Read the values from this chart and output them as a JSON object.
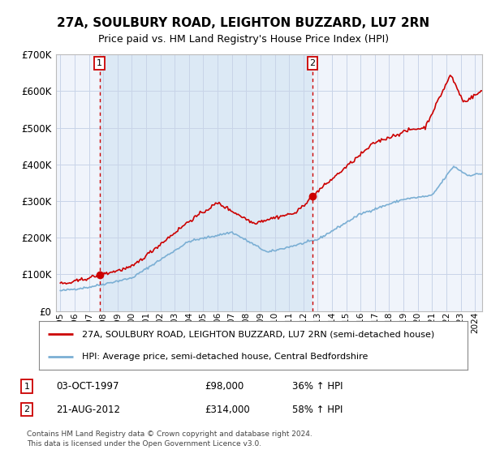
{
  "title": "27A, SOULBURY ROAD, LEIGHTON BUZZARD, LU7 2RN",
  "subtitle": "Price paid vs. HM Land Registry's House Price Index (HPI)",
  "plot_bg_color": "#f0f4fb",
  "highlight_bg_color": "#dce9f5",
  "grid_color": "#c8d4e8",
  "hpi_color": "#7bafd4",
  "price_color": "#cc0000",
  "marker_color": "#cc0000",
  "dashed_color": "#cc0000",
  "ylim": [
    0,
    700000
  ],
  "yticks": [
    0,
    100000,
    200000,
    300000,
    400000,
    500000,
    600000,
    700000
  ],
  "ytick_labels": [
    "£0",
    "£100K",
    "£200K",
    "£300K",
    "£400K",
    "£500K",
    "£600K",
    "£700K"
  ],
  "x_start": 1995,
  "x_end": 2024,
  "xticks": [
    1995,
    1996,
    1997,
    1998,
    1999,
    2000,
    2001,
    2002,
    2003,
    2004,
    2005,
    2006,
    2007,
    2008,
    2009,
    2010,
    2011,
    2012,
    2013,
    2014,
    2015,
    2016,
    2017,
    2018,
    2019,
    2020,
    2021,
    2022,
    2023,
    2024
  ],
  "sale1_x": 1997.75,
  "sale1_y": 98000,
  "sale1_label": "1",
  "sale1_date": "03-OCT-1997",
  "sale1_price": "£98,000",
  "sale1_hpi": "36% ↑ HPI",
  "sale2_x": 2012.63,
  "sale2_y": 314000,
  "sale2_label": "2",
  "sale2_date": "21-AUG-2012",
  "sale2_price": "£314,000",
  "sale2_hpi": "58% ↑ HPI",
  "legend_line1": "27A, SOULBURY ROAD, LEIGHTON BUZZARD, LU7 2RN (semi-detached house)",
  "legend_line2": "HPI: Average price, semi-detached house, Central Bedfordshire",
  "footer": "Contains HM Land Registry data © Crown copyright and database right 2024.\nThis data is licensed under the Open Government Licence v3.0."
}
